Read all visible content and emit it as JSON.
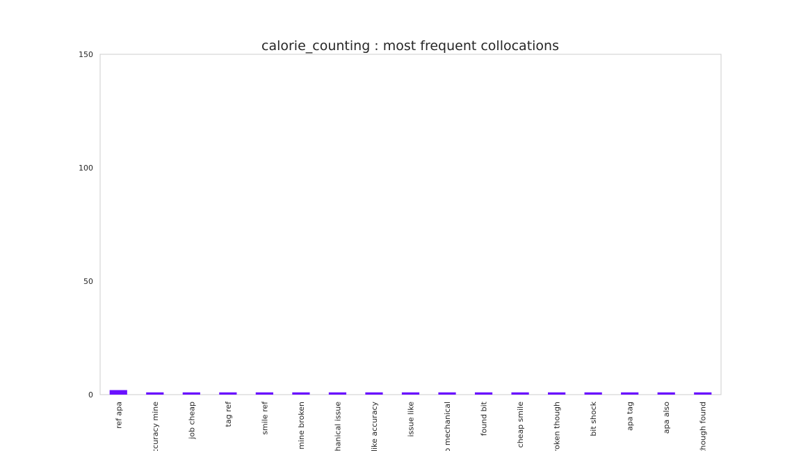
{
  "chart_data": {
    "type": "bar",
    "title": "calorie_counting : most frequent collocations",
    "xlabel": "",
    "ylabel": "",
    "categories": [
      "ref apa",
      "accuracy mine",
      "job cheap",
      "tag ref",
      "smile ref",
      "mine broken",
      "mechanical issue",
      "like accuracy",
      "issue like",
      "so mechanical",
      "found bit",
      "cheap smile",
      "broken though",
      "bit shock",
      "apa tag",
      "apa also",
      "though found"
    ],
    "values": [
      2,
      1,
      1,
      1,
      1,
      1,
      1,
      1,
      1,
      1,
      1,
      1,
      1,
      1,
      1,
      1,
      1
    ],
    "ylim": [
      0,
      150
    ],
    "yticks": [
      0,
      50,
      100,
      150
    ],
    "grid": false,
    "legend": "none",
    "bar_color": "#6a11ff",
    "frame_color": "#cccccc"
  }
}
